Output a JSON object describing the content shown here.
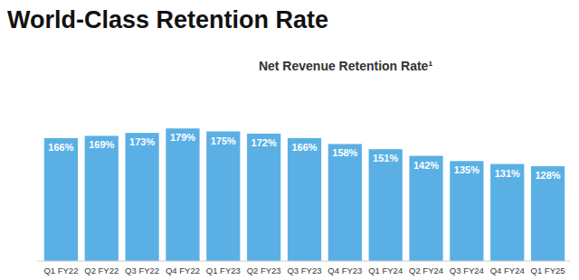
{
  "chart_data": {
    "type": "bar",
    "title": "World-Class Retention Rate",
    "subtitle": "Net Revenue Retention Rate¹",
    "categories": [
      "Q1 FY22",
      "Q2 FY22",
      "Q3 FY22",
      "Q4 FY22",
      "Q1 FY23",
      "Q2 FY23",
      "Q3 FY23",
      "Q4 FY23",
      "Q1 FY24",
      "Q2 FY24",
      "Q3 FY24",
      "Q4 FY24",
      "Q1 FY25"
    ],
    "values": [
      166,
      169,
      173,
      179,
      175,
      172,
      166,
      158,
      151,
      142,
      135,
      131,
      128
    ],
    "value_labels": [
      "166%",
      "169%",
      "173%",
      "179%",
      "175%",
      "172%",
      "166%",
      "158%",
      "151%",
      "142%",
      "135%",
      "131%",
      "128%"
    ],
    "color": "#5ab0e4",
    "ylim": [
      0,
      200
    ],
    "grid": false,
    "data_labels": true,
    "tick_labels": "x"
  }
}
